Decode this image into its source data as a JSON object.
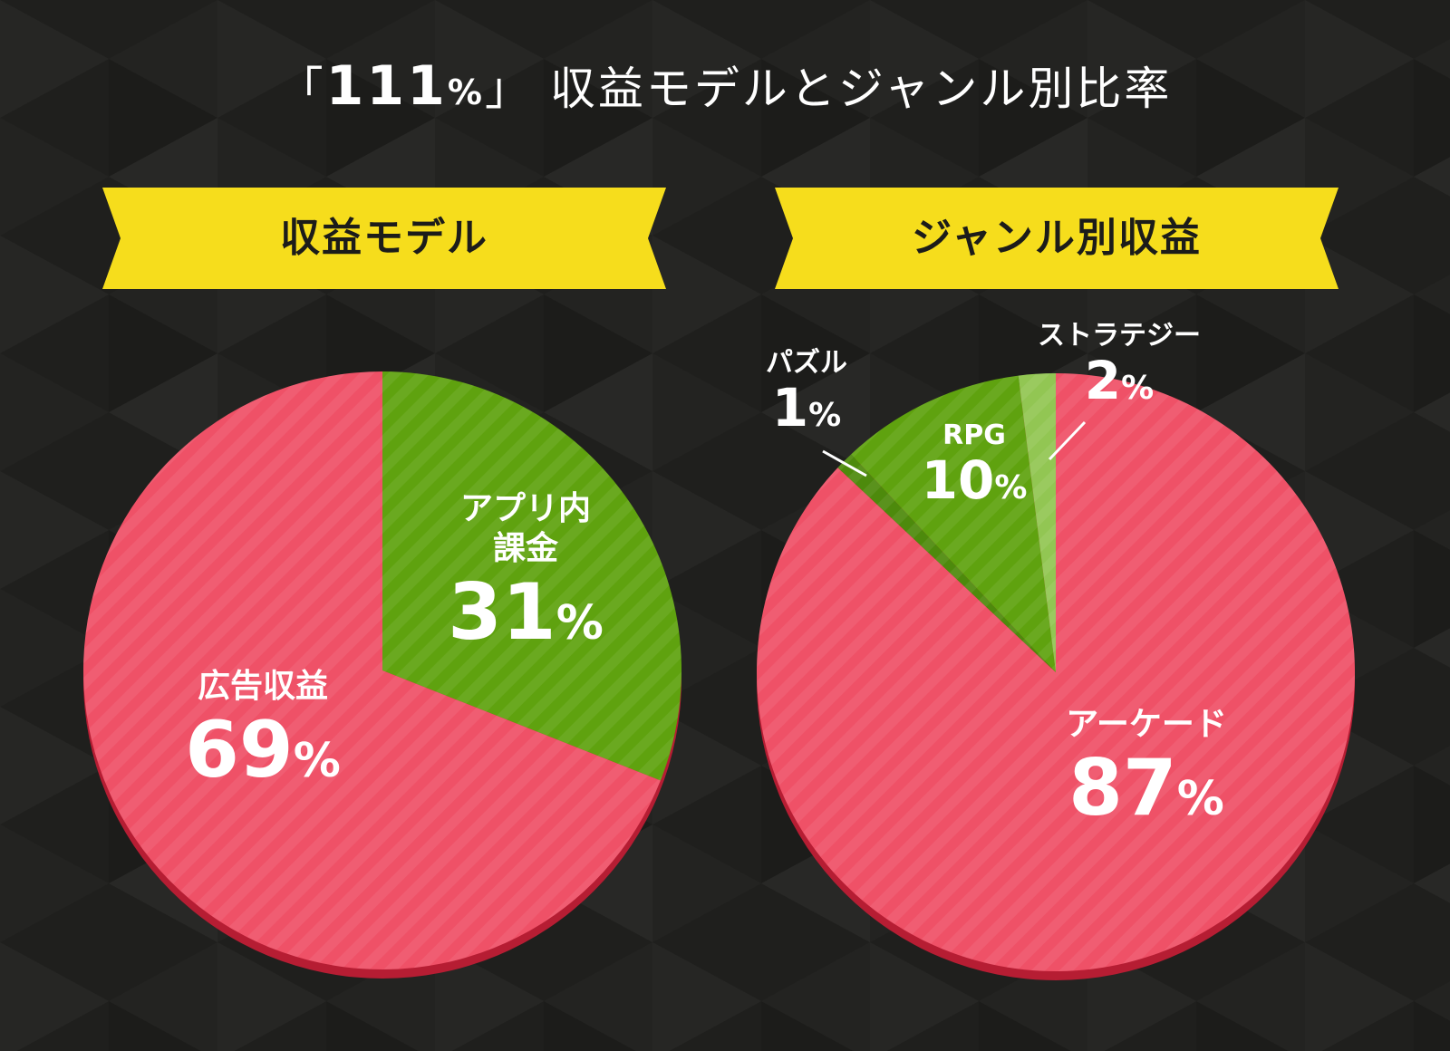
{
  "title": {
    "open_bracket": "「",
    "number": "111",
    "percent": "%",
    "close_bracket": "」",
    "rest": "収益モデルとジャンル別比率"
  },
  "colors": {
    "background": "#1f1f1d",
    "banner": "#f6dd1c",
    "red": "#ef5167",
    "red_shadow": "#b61d33",
    "green": "#5fa20f",
    "light_green": "#92c653"
  },
  "chart_data": [
    {
      "type": "pie",
      "title": "収益モデル",
      "slices": [
        {
          "label": "アプリ内課金",
          "label_lines": [
            "アプリ内",
            "課金"
          ],
          "value": 31,
          "unit": "%",
          "color": "#5fa20f"
        },
        {
          "label": "広告収益",
          "label_lines": [
            "広告収益"
          ],
          "value": 69,
          "unit": "%",
          "color": "#ef5167"
        }
      ]
    },
    {
      "type": "pie",
      "title": "ジャンル別収益",
      "slices": [
        {
          "label": "アーケード",
          "value": 87,
          "unit": "%",
          "color": "#ef5167"
        },
        {
          "label": "パズル",
          "value": 1,
          "unit": "%",
          "color": "#4d8a0c"
        },
        {
          "label": "RPG",
          "value": 10,
          "unit": "%",
          "color": "#5fa20f"
        },
        {
          "label": "ストラテジー",
          "value": 2,
          "unit": "%",
          "color": "#92c653"
        }
      ]
    }
  ]
}
